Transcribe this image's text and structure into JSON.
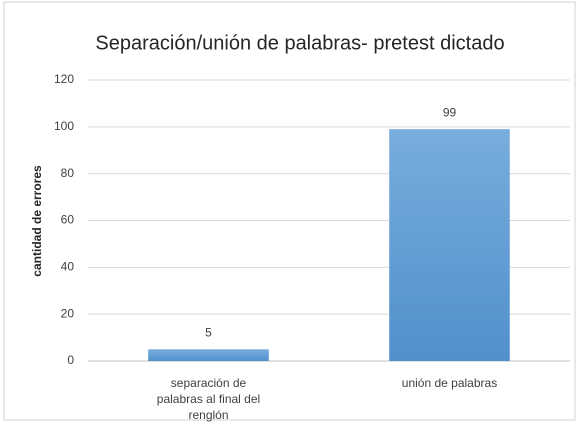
{
  "chart_data": {
    "type": "bar",
    "title": "Separación/unión de palabras- pretest dictado",
    "y_label": "cantidad de errores",
    "categories": [
      "separación de palabras al final del renglón",
      "unión de palabras"
    ],
    "values": [
      5,
      99
    ],
    "color": "#5b9bd5",
    "ylim": [
      0,
      120
    ],
    "yticks": [
      0,
      20,
      40,
      60,
      80,
      100,
      120
    ],
    "grid": true
  }
}
